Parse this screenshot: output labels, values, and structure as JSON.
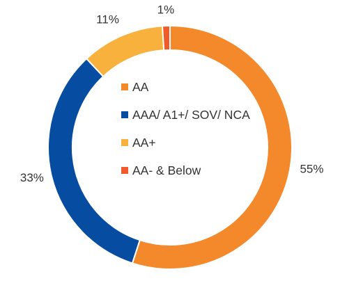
{
  "chart_data": {
    "type": "pie",
    "donut": true,
    "categories": [
      "AA",
      "AAA/ A1+/ SOV/ NCA",
      "AA+",
      "AA- & Below"
    ],
    "values": [
      55,
      33,
      11,
      1
    ],
    "value_labels": [
      "55%",
      "33%",
      "11%",
      "1%"
    ],
    "colors": [
      "#F3892A",
      "#064DA1",
      "#F8B13D",
      "#EF5B2B"
    ],
    "legend_position": "inside"
  }
}
